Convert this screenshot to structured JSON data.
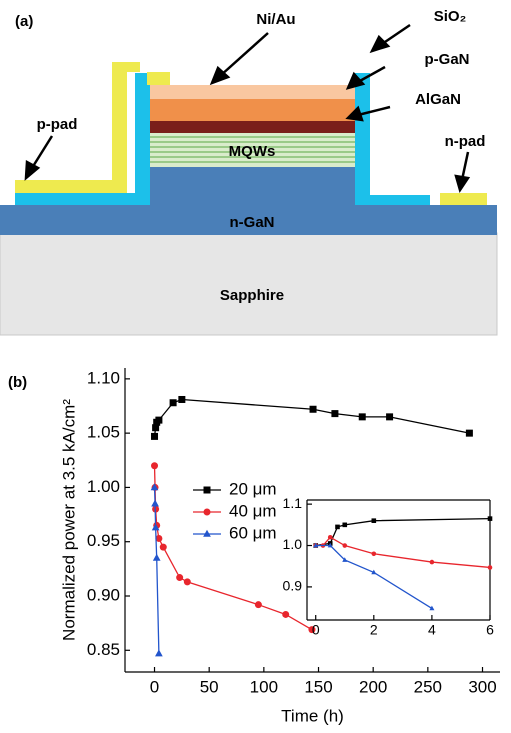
{
  "panel_a": {
    "label": "(a)",
    "ni_au": "Ni/Au",
    "sio2": "SiO₂",
    "p_gan": "p-GaN",
    "algan": "AlGaN",
    "mqws": "MQWs",
    "p_pad": "p-pad",
    "n_pad": "n-pad",
    "n_gan": "n-GaN",
    "sapphire": "Sapphire"
  },
  "panel_b": {
    "label": "(b)"
  },
  "chart_data": [
    {
      "type": "line",
      "xlabel": "Time (h)",
      "ylabel": "Normalized power at 3.5 kA/cm²",
      "xlim": [
        -27,
        316
      ],
      "ylim": [
        0.83,
        1.11
      ],
      "xticks": [
        0,
        50,
        100,
        150,
        200,
        250,
        300
      ],
      "yticks": [
        {
          "value": 0.85,
          "label": "0.85"
        },
        {
          "value": 0.9,
          "label": "0.90"
        },
        {
          "value": 0.95,
          "label": "0.95"
        },
        {
          "value": 1.0,
          "label": "1.00"
        },
        {
          "value": 1.05,
          "label": "1.05"
        },
        {
          "value": 1.1,
          "label": "1.10"
        }
      ],
      "legend": "upper left",
      "series": [
        {
          "name": "20 μm",
          "color": "#000000",
          "marker": "square",
          "x": [
            0,
            1,
            2,
            4,
            17,
            25,
            145,
            165,
            190,
            215,
            288
          ],
          "values": [
            1.047,
            1.055,
            1.06,
            1.062,
            1.078,
            1.081,
            1.072,
            1.068,
            1.065,
            1.065,
            1.05
          ]
        },
        {
          "name": "40 μm",
          "color": "#e8262d",
          "marker": "circle",
          "x": [
            0,
            0.5,
            1,
            2,
            4,
            8,
            23,
            30,
            95,
            120,
            144
          ],
          "values": [
            1.02,
            1.0,
            0.98,
            0.965,
            0.953,
            0.945,
            0.917,
            0.913,
            0.892,
            0.883,
            0.869
          ]
        },
        {
          "name": "60 μm",
          "color": "#2255cc",
          "marker": "triangle",
          "x": [
            0,
            0.5,
            1,
            2,
            4
          ],
          "values": [
            1.0,
            0.985,
            0.963,
            0.935,
            0.847
          ]
        }
      ]
    },
    {
      "type": "line",
      "xlim": [
        -0.3,
        6
      ],
      "ylim": [
        0.82,
        1.11
      ],
      "xticks": [
        0,
        2,
        4,
        6
      ],
      "yticks": [
        {
          "value": 0.9,
          "label": "0.9"
        },
        {
          "value": 1.0,
          "label": "1.0"
        },
        {
          "value": 1.1,
          "label": "1.1"
        }
      ],
      "series": [
        {
          "color": "#000000",
          "marker": "square",
          "x": [
            0,
            0.5,
            0.75,
            1,
            2,
            6
          ],
          "values": [
            1.0,
            1.005,
            1.045,
            1.05,
            1.06,
            1.065
          ]
        },
        {
          "color": "#e8262d",
          "marker": "circle",
          "x": [
            0,
            0.25,
            0.5,
            1,
            2,
            4,
            6
          ],
          "values": [
            1.0,
            1.0,
            1.02,
            1.0,
            0.98,
            0.96,
            0.947
          ]
        },
        {
          "color": "#2255cc",
          "marker": "triangle",
          "x": [
            0,
            0.5,
            1,
            2,
            4
          ],
          "values": [
            1.0,
            1.0,
            0.965,
            0.935,
            0.848
          ]
        }
      ]
    }
  ]
}
